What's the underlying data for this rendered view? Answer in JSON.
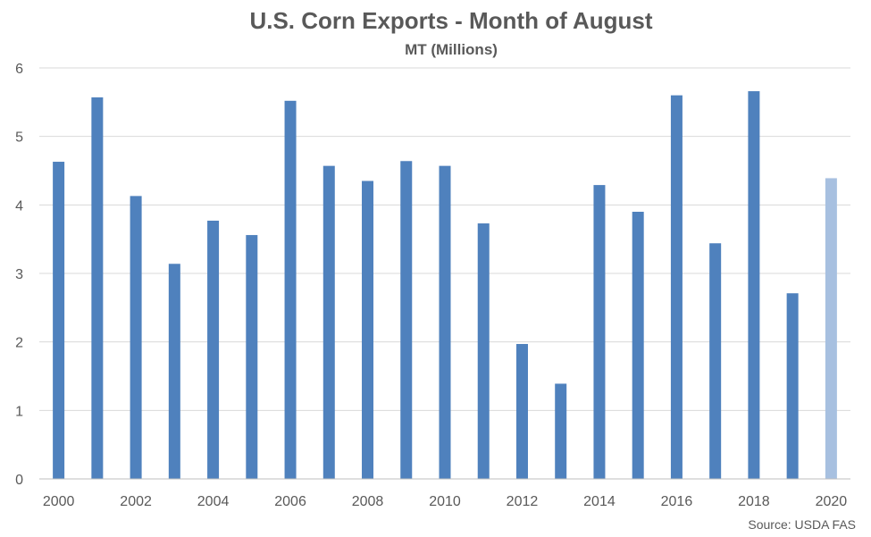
{
  "colors": {
    "bar": "#4f81bd",
    "bar_highlight": "#a7c0e0",
    "grid": "#d9d9d9",
    "axis": "#bfbfbf",
    "text": "#595959"
  },
  "chart_data": {
    "type": "bar",
    "title": "U.S. Corn Exports - Month of August",
    "subtitle": "MT (Millions)",
    "xlabel": "",
    "ylabel": "",
    "source": "Source: USDA FAS",
    "categories": [
      "2000",
      "2001",
      "2002",
      "2003",
      "2004",
      "2005",
      "2006",
      "2007",
      "2008",
      "2009",
      "2010",
      "2011",
      "2012",
      "2013",
      "2014",
      "2015",
      "2016",
      "2017",
      "2018",
      "2019",
      "2020"
    ],
    "x_tick_labels": [
      "2000",
      "",
      "2002",
      "",
      "2004",
      "",
      "2006",
      "",
      "2008",
      "",
      "2010",
      "",
      "2012",
      "",
      "2014",
      "",
      "2016",
      "",
      "2018",
      "",
      "2020"
    ],
    "values": [
      4.63,
      5.57,
      4.13,
      3.14,
      3.77,
      3.56,
      5.52,
      4.57,
      4.35,
      4.64,
      4.57,
      3.73,
      1.97,
      1.39,
      4.29,
      3.9,
      5.6,
      3.44,
      5.66,
      2.71,
      4.39
    ],
    "highlight_categories": [
      "2020"
    ],
    "ylim": [
      0,
      6
    ],
    "y_ticks": [
      0,
      1,
      2,
      3,
      4,
      5,
      6
    ],
    "grid": true,
    "legend": "none"
  }
}
